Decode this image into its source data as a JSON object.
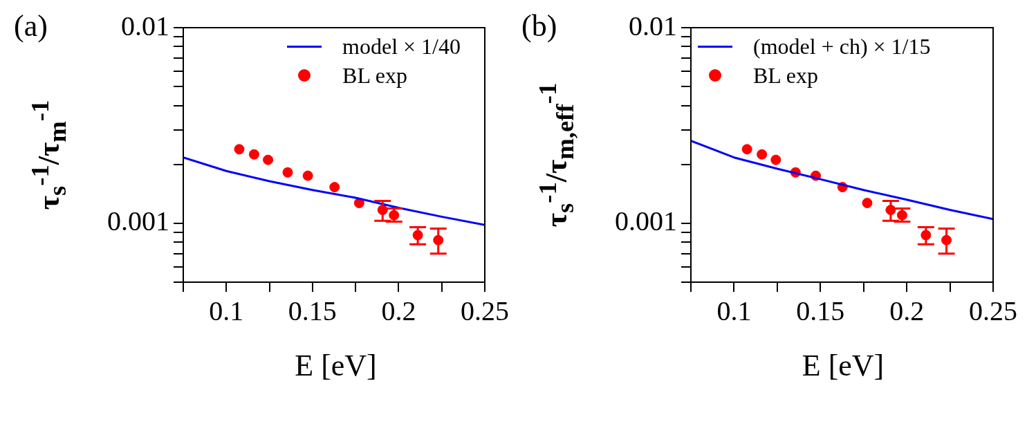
{
  "chart_data": [
    {
      "type": "scatter",
      "title": "(a)",
      "xlabel": "E [eV]",
      "ylabel": "τ$_{s}$$^{-1}$/τ$_{m}$$^{-1}$",
      "xlim": [
        0.075,
        0.25
      ],
      "xticks": [
        {
          "value": 0.075,
          "label": null
        },
        0.1,
        {
          "value": 0.125,
          "label": null
        },
        0.15,
        {
          "value": 0.175,
          "label": null
        },
        0.2,
        {
          "value": 0.225,
          "label": null
        },
        0.25
      ],
      "ylim": [
        0.0005,
        0.01
      ],
      "yticks": [
        {
          "value": 0.0005,
          "label": null
        },
        {
          "value": 0.0006,
          "label": null
        },
        {
          "value": 0.0007,
          "label": null
        },
        {
          "value": 0.0008,
          "label": null
        },
        {
          "value": 0.0009,
          "label": null
        },
        0.001,
        {
          "value": 0.002,
          "label": null
        },
        {
          "value": 0.003,
          "label": null
        },
        {
          "value": 0.004,
          "label": null
        },
        {
          "value": 0.005,
          "label": null
        },
        {
          "value": 0.006,
          "label": null
        },
        {
          "value": 0.007,
          "label": null
        },
        {
          "value": 0.008,
          "label": null
        },
        {
          "value": 0.009,
          "label": null
        },
        0.01
      ],
      "log": "y",
      "grid": false,
      "legend": "top right",
      "series": [
        {
          "name": "model × 1/40",
          "type": "line",
          "color": "#0000ff",
          "line_style": "solid",
          "x": [
            0.075,
            0.1,
            0.125,
            0.15,
            0.175,
            0.2,
            0.225,
            0.25
          ],
          "values": [
            0.00217,
            0.00185,
            0.00164,
            0.00148,
            0.00135,
            0.0012,
            0.00108,
            0.00098
          ]
        },
        {
          "name": "BL exp",
          "type": "scatter",
          "color": "#ff0000",
          "marker": "circle",
          "x": [
            0.1075,
            0.1161,
            0.1242,
            0.1356,
            0.1473,
            0.1628,
            0.1771,
            0.1907,
            0.1973,
            0.2111,
            0.223
          ],
          "values": [
            0.00239,
            0.00225,
            0.00211,
            0.00182,
            0.00175,
            0.00153,
            0.00127,
            0.00117,
            0.0011,
            0.00087,
            0.00082
          ],
          "errors": [
            null,
            null,
            null,
            null,
            null,
            null,
            null,
            [
              0.00103,
              0.0013
            ],
            [
              0.00102,
              0.00119
            ],
            [
              0.00078,
              0.000955
            ],
            [
              0.0007,
              0.00094
            ]
          ]
        }
      ]
    },
    {
      "type": "scatter",
      "title": "(b)",
      "xlabel": "E [eV]",
      "ylabel": "τ$_{s}$$^{-1}$/τ$_{m,eff}$$^{-1}$",
      "xlim": [
        0.075,
        0.25
      ],
      "xticks": [
        {
          "value": 0.075,
          "label": null
        },
        0.1,
        {
          "value": 0.125,
          "label": null
        },
        0.15,
        {
          "value": 0.175,
          "label": null
        },
        0.2,
        {
          "value": 0.225,
          "label": null
        },
        0.25
      ],
      "ylim": [
        0.0005,
        0.01
      ],
      "yticks": [
        {
          "value": 0.0005,
          "label": null
        },
        {
          "value": 0.0006,
          "label": null
        },
        {
          "value": 0.0007,
          "label": null
        },
        {
          "value": 0.0008,
          "label": null
        },
        {
          "value": 0.0009,
          "label": null
        },
        0.001,
        {
          "value": 0.002,
          "label": null
        },
        {
          "value": 0.003,
          "label": null
        },
        {
          "value": 0.004,
          "label": null
        },
        {
          "value": 0.005,
          "label": null
        },
        {
          "value": 0.006,
          "label": null
        },
        {
          "value": 0.007,
          "label": null
        },
        {
          "value": 0.008,
          "label": null
        },
        {
          "value": 0.009,
          "label": null
        },
        0.01
      ],
      "log": "y",
      "grid": false,
      "legend": "top left",
      "series": [
        {
          "name": "(model + ch) × 1/15",
          "type": "line",
          "color": "#0000ff",
          "line_style": "solid",
          "x": [
            0.075,
            0.1,
            0.125,
            0.15,
            0.175,
            0.2,
            0.225,
            0.25
          ],
          "values": [
            0.00264,
            0.00217,
            0.0019,
            0.00168,
            0.00148,
            0.00132,
            0.00117,
            0.00105
          ]
        },
        {
          "name": "BL exp",
          "type": "scatter",
          "color": "#ff0000",
          "marker": "circle",
          "x": [
            0.1075,
            0.1161,
            0.1242,
            0.1356,
            0.1473,
            0.1628,
            0.1771,
            0.1907,
            0.1973,
            0.2111,
            0.223
          ],
          "values": [
            0.00239,
            0.00225,
            0.00211,
            0.00182,
            0.00175,
            0.00153,
            0.00127,
            0.00117,
            0.0011,
            0.00087,
            0.00082
          ],
          "errors": [
            null,
            null,
            null,
            null,
            null,
            null,
            null,
            [
              0.00103,
              0.0013
            ],
            [
              0.00102,
              0.00119
            ],
            [
              0.00078,
              0.000955
            ],
            [
              0.0007,
              0.00094
            ]
          ]
        }
      ]
    }
  ]
}
